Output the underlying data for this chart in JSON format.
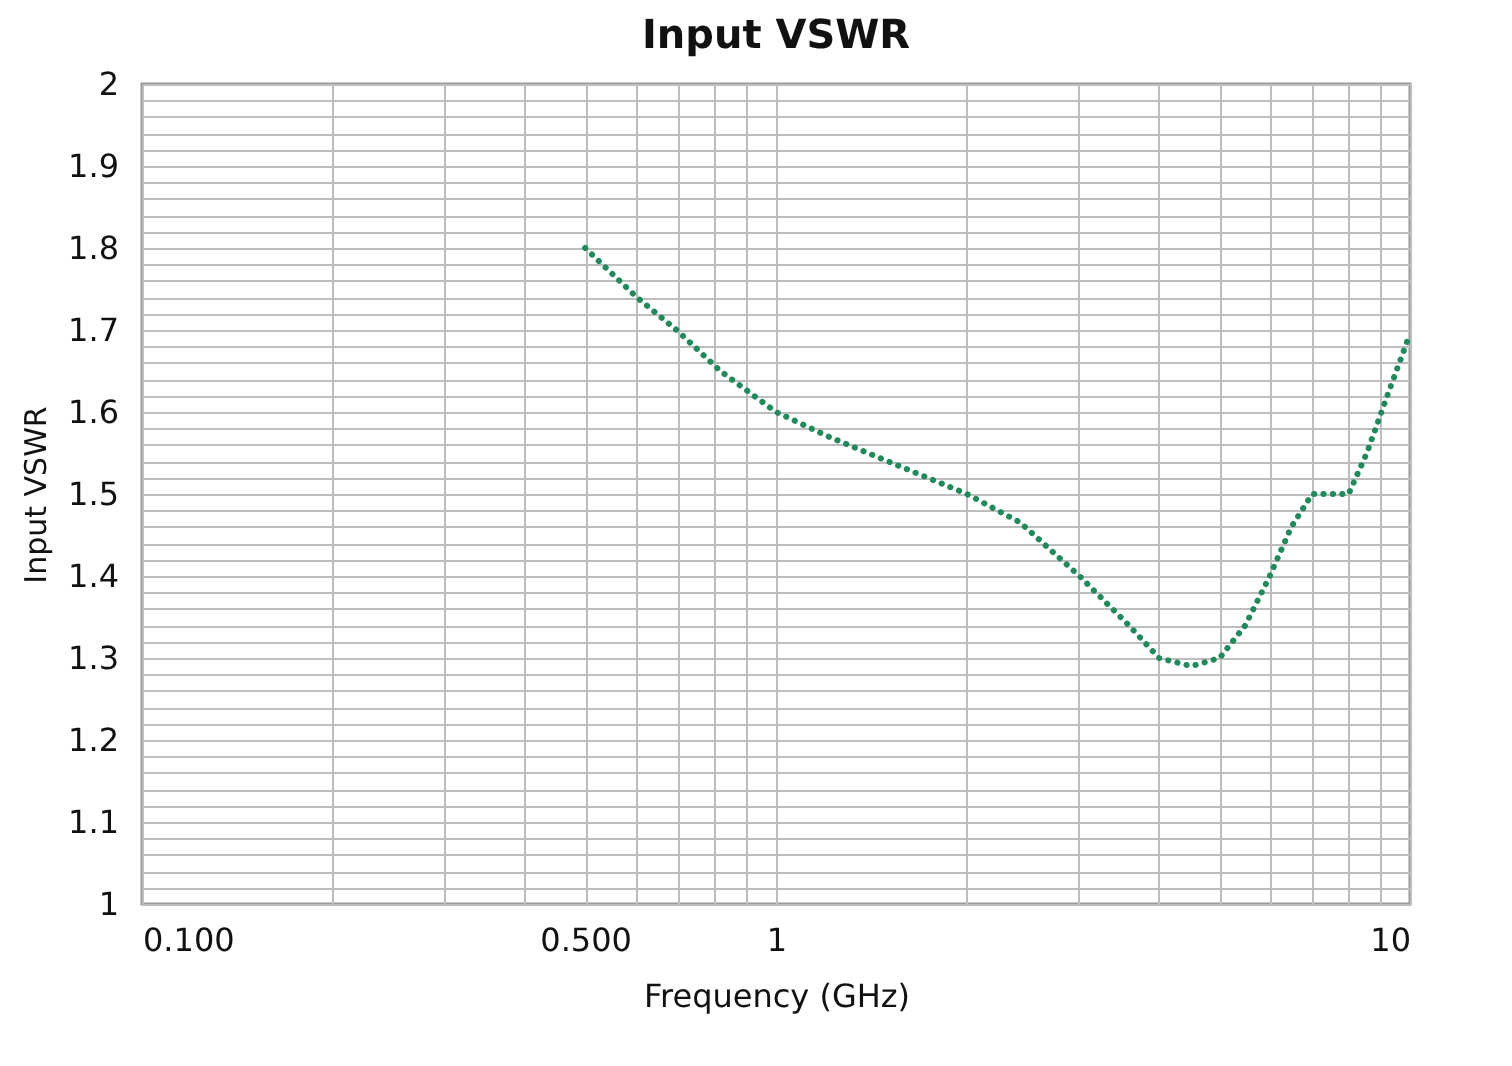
{
  "chart_data": {
    "type": "line",
    "title": "Input VSWR",
    "xlabel": "Frequency (GHz)",
    "ylabel": "Input VSWR",
    "x": [
      0.5,
      0.603,
      0.697,
      0.817,
      1.0,
      1.21,
      1.5,
      2.0,
      2.43,
      3.01,
      3.6,
      4.02,
      4.52,
      5.01,
      5.5,
      6.01,
      6.5,
      7.01,
      8.0,
      8.55,
      9.21,
      9.94
    ],
    "series": [
      {
        "color": "#1f8a5a",
        "values": [
          1.8,
          1.74,
          1.7,
          1.65,
          1.6,
          1.57,
          1.54,
          1.5,
          1.465,
          1.4,
          1.34,
          1.3,
          1.29,
          1.3,
          1.34,
          1.4,
          1.46,
          1.5,
          1.5,
          1.55,
          1.62,
          1.69
        ]
      }
    ],
    "log": "x",
    "xlim": [
      0.1,
      10
    ],
    "ylim": [
      1,
      2
    ],
    "xticks": [
      {
        "value": 0.1,
        "label": "0.100"
      },
      {
        "value": 0.2,
        "label": null
      },
      {
        "value": 0.3,
        "label": null
      },
      {
        "value": 0.4,
        "label": null
      },
      {
        "value": 0.5,
        "label": "0.500"
      },
      {
        "value": 0.6,
        "label": null
      },
      {
        "value": 0.7,
        "label": null
      },
      {
        "value": 0.8,
        "label": null
      },
      {
        "value": 0.9,
        "label": null
      },
      1,
      {
        "value": 2,
        "label": null
      },
      {
        "value": 3,
        "label": null
      },
      {
        "value": 4,
        "label": null
      },
      {
        "value": 5,
        "label": null
      },
      {
        "value": 6,
        "label": null
      },
      {
        "value": 7,
        "label": null
      },
      {
        "value": 8,
        "label": null
      },
      {
        "value": 9,
        "label": null
      },
      10
    ],
    "yticks": [
      1,
      {
        "value": 1.02,
        "label": null
      },
      {
        "value": 1.04,
        "label": null
      },
      {
        "value": 1.06,
        "label": null
      },
      {
        "value": 1.08,
        "label": null
      },
      1.1,
      {
        "value": 1.12,
        "label": null
      },
      {
        "value": 1.14,
        "label": null
      },
      {
        "value": 1.16,
        "label": null
      },
      {
        "value": 1.18,
        "label": null
      },
      1.2,
      {
        "value": 1.22,
        "label": null
      },
      {
        "value": 1.24,
        "label": null
      },
      {
        "value": 1.26,
        "label": null
      },
      {
        "value": 1.28,
        "label": null
      },
      1.3,
      {
        "value": 1.32,
        "label": null
      },
      {
        "value": 1.34,
        "label": null
      },
      {
        "value": 1.36,
        "label": null
      },
      {
        "value": 1.38,
        "label": null
      },
      1.4,
      {
        "value": 1.42,
        "label": null
      },
      {
        "value": 1.44,
        "label": null
      },
      {
        "value": 1.46,
        "label": null
      },
      {
        "value": 1.48,
        "label": null
      },
      1.5,
      {
        "value": 1.52,
        "label": null
      },
      {
        "value": 1.54,
        "label": null
      },
      {
        "value": 1.56,
        "label": null
      },
      {
        "value": 1.58,
        "label": null
      },
      1.6,
      {
        "value": 1.62,
        "label": null
      },
      {
        "value": 1.64,
        "label": null
      },
      {
        "value": 1.66,
        "label": null
      },
      {
        "value": 1.68,
        "label": null
      },
      1.7,
      {
        "value": 1.72,
        "label": null
      },
      {
        "value": 1.74,
        "label": null
      },
      {
        "value": 1.76,
        "label": null
      },
      {
        "value": 1.78,
        "label": null
      },
      1.8,
      {
        "value": 1.82,
        "label": null
      },
      {
        "value": 1.84,
        "label": null
      },
      {
        "value": 1.86,
        "label": null
      },
      {
        "value": 1.88,
        "label": null
      },
      1.9,
      {
        "value": 1.92,
        "label": null
      },
      {
        "value": 1.94,
        "label": null
      },
      {
        "value": 1.96,
        "label": null
      },
      {
        "value": 1.98,
        "label": null
      },
      2
    ],
    "grid": true,
    "marker": "none",
    "line_style": "dotted"
  }
}
